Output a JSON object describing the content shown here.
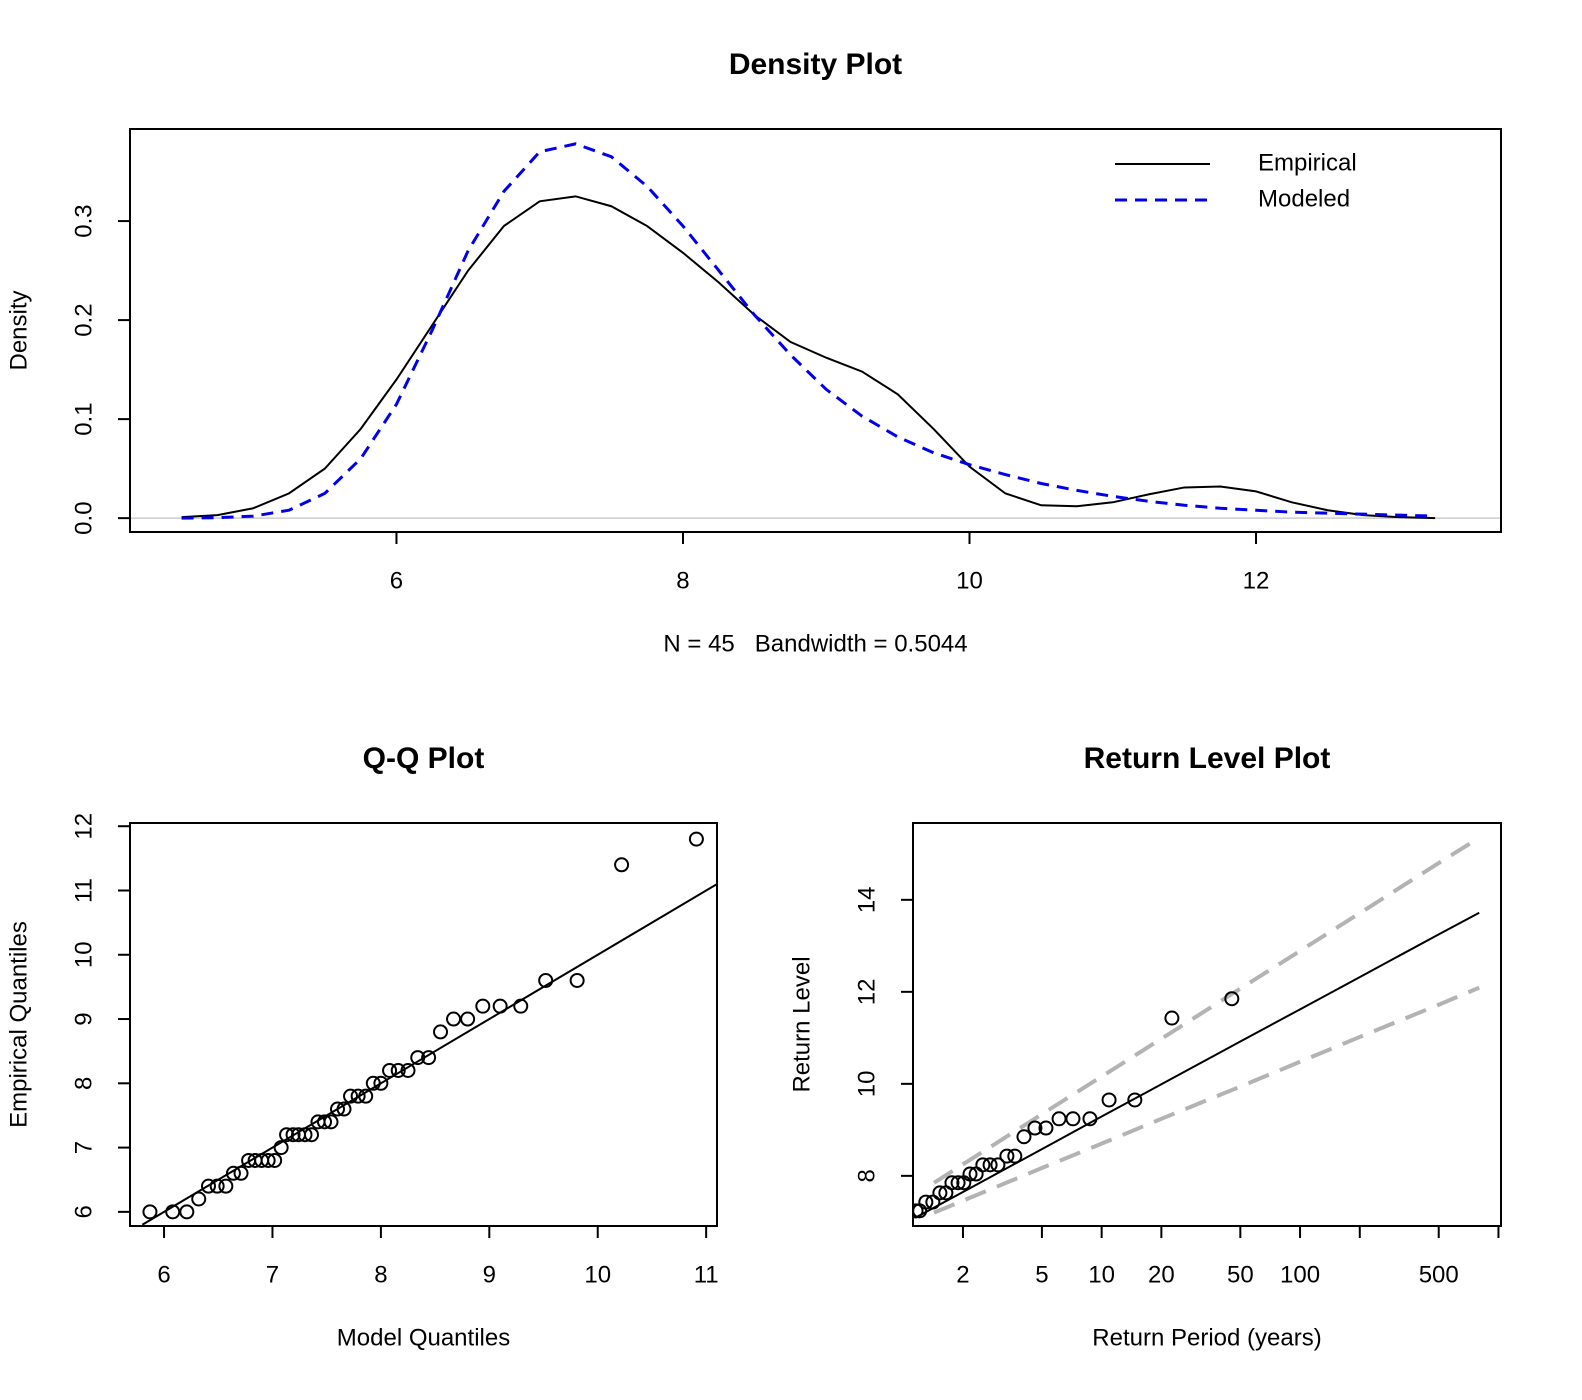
{
  "chart_data": [
    {
      "type": "line",
      "title": "Density Plot",
      "xlabel": "N = 45   Bandwidth = 0.5044",
      "ylabel": "Density",
      "x": [
        4.5,
        4.75,
        5.0,
        5.25,
        5.5,
        5.75,
        6.0,
        6.25,
        6.5,
        6.75,
        7.0,
        7.25,
        7.5,
        7.75,
        8.0,
        8.25,
        8.5,
        8.75,
        9.0,
        9.25,
        9.5,
        9.75,
        10.0,
        10.25,
        10.5,
        10.75,
        11.0,
        11.25,
        11.5,
        11.75,
        12.0,
        12.25,
        12.5,
        12.75,
        13.0,
        13.25
      ],
      "series": [
        {
          "name": "Empirical",
          "color": "#000000",
          "line_style": "solid",
          "values": [
            0.001,
            0.003,
            0.01,
            0.025,
            0.05,
            0.09,
            0.14,
            0.195,
            0.25,
            0.295,
            0.32,
            0.325,
            0.315,
            0.295,
            0.268,
            0.238,
            0.205,
            0.178,
            0.162,
            0.148,
            0.125,
            0.09,
            0.052,
            0.025,
            0.013,
            0.012,
            0.016,
            0.024,
            0.031,
            0.032,
            0.027,
            0.016,
            0.008,
            0.003,
            0.001,
            0.0
          ]
        },
        {
          "name": "Modeled",
          "color": "#0000ee",
          "line_style": "dashed",
          "values": [
            0.0,
            0.0005,
            0.002,
            0.008,
            0.025,
            0.06,
            0.115,
            0.19,
            0.27,
            0.33,
            0.37,
            0.378,
            0.365,
            0.335,
            0.295,
            0.25,
            0.205,
            0.165,
            0.13,
            0.103,
            0.082,
            0.066,
            0.054,
            0.044,
            0.035,
            0.028,
            0.022,
            0.017,
            0.013,
            0.01,
            0.008,
            0.006,
            0.005,
            0.004,
            0.003,
            0.002
          ]
        }
      ],
      "xlim": [
        4.14,
        13.71
      ],
      "ylim": [
        -0.014,
        0.393
      ],
      "xticks": [
        6,
        8,
        10,
        12
      ],
      "yticks": [
        {
          "value": 0,
          "label": "0.0"
        },
        {
          "value": 0.1,
          "label": "0.1"
        },
        {
          "value": 0.2,
          "label": "0.2"
        },
        {
          "value": 0.3,
          "label": "0.3"
        }
      ],
      "legend": "topright"
    },
    {
      "type": "scatter",
      "title": "Q-Q Plot",
      "xlabel": "Model Quantiles",
      "ylabel": "Empirical Quantiles",
      "x": [
        5.87,
        6.08,
        6.21,
        6.32,
        6.41,
        6.49,
        6.57,
        6.64,
        6.71,
        6.78,
        6.84,
        6.9,
        6.96,
        7.02,
        7.08,
        7.13,
        7.19,
        7.24,
        7.3,
        7.36,
        7.42,
        7.48,
        7.54,
        7.6,
        7.66,
        7.72,
        7.79,
        7.86,
        7.93,
        8.0,
        8.08,
        8.16,
        8.25,
        8.34,
        8.44,
        8.55,
        8.67,
        8.8,
        8.94,
        9.1,
        9.29,
        9.52,
        9.81,
        10.22,
        10.91
      ],
      "values": [
        6.0,
        6.0,
        6.0,
        6.2,
        6.4,
        6.4,
        6.4,
        6.6,
        6.6,
        6.8,
        6.8,
        6.8,
        6.8,
        6.8,
        7.0,
        7.2,
        7.2,
        7.2,
        7.2,
        7.2,
        7.4,
        7.4,
        7.4,
        7.6,
        7.6,
        7.8,
        7.8,
        7.8,
        8.0,
        8.0,
        8.2,
        8.2,
        8.2,
        8.4,
        8.4,
        8.8,
        9.0,
        9.0,
        9.2,
        9.2,
        9.2,
        9.6,
        9.6,
        11.4,
        11.8
      ],
      "color": "#000000",
      "series": [
        {
          "x": [
            5.8,
            11.1
          ],
          "values": [
            5.8,
            11.1
          ],
          "color": "#000000",
          "line_style": "solid"
        }
      ],
      "xlim": [
        5.686,
        11.1
      ],
      "ylim": [
        5.78,
        12.05
      ],
      "xticks": [
        6,
        7,
        8,
        9,
        10,
        11
      ],
      "yticks": [
        6,
        7,
        8,
        9,
        10,
        11,
        12
      ]
    },
    {
      "type": "scatter",
      "title": "Return Level Plot",
      "xlabel": "Return Period (years)",
      "ylabel": "Return Level",
      "x": [
        1.16,
        1.21,
        1.3,
        1.41,
        1.53,
        1.64,
        1.76,
        1.89,
        2.02,
        2.17,
        2.33,
        2.52,
        2.74,
        3.0,
        3.33,
        3.65,
        4.06,
        4.61,
        5.24,
        6.1,
        7.17,
        8.73,
        10.9,
        14.7,
        22.6,
        45.3
      ],
      "values": [
        7.24,
        7.24,
        7.43,
        7.43,
        7.63,
        7.63,
        7.85,
        7.85,
        7.85,
        8.04,
        8.04,
        8.24,
        8.24,
        8.24,
        8.43,
        8.43,
        8.85,
        9.04,
        9.04,
        9.24,
        9.24,
        9.24,
        9.65,
        9.65,
        11.43,
        11.85
      ],
      "color": "#000000",
      "series": [
        {
          "x": [
            1.15,
            2,
            5,
            10,
            20,
            50,
            100,
            200,
            500,
            800
          ],
          "values": [
            7.09,
            7.65,
            8.58,
            9.29,
            9.99,
            10.92,
            11.62,
            12.32,
            13.25,
            13.72
          ],
          "color": "#000000",
          "line_style": "solid"
        },
        {
          "x": [
            1.43,
            2,
            5,
            10,
            20,
            50,
            100,
            200,
            500,
            800
          ],
          "values": [
            7.85,
            8.25,
            9.34,
            10.16,
            10.98,
            12.07,
            12.89,
            13.71,
            14.8,
            15.35
          ],
          "color": "#b3b3b3",
          "line_style": "dashed"
        },
        {
          "x": [
            1.43,
            2,
            5,
            10,
            20,
            50,
            100,
            200,
            500,
            800
          ],
          "values": [
            7.2,
            7.46,
            8.17,
            8.7,
            9.24,
            9.94,
            10.48,
            11.02,
            11.72,
            12.09
          ],
          "color": "#b3b3b3",
          "line_style": "dashed"
        }
      ],
      "xscale": "log",
      "xlim": [
        1.12,
        1030
      ],
      "ylim": [
        6.91,
        15.67
      ],
      "xticks": [
        2,
        5,
        10,
        20,
        50,
        100,
        {
          "value": 200,
          "label": null
        },
        500,
        {
          "value": 1000,
          "label": null
        }
      ],
      "yticks": [
        8,
        10,
        12,
        14
      ]
    }
  ]
}
